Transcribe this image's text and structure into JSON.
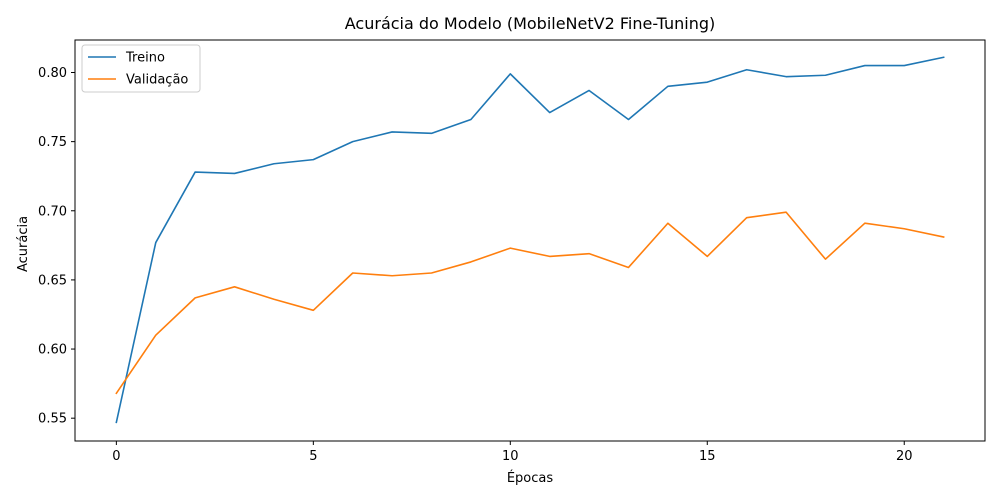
{
  "chart_data": {
    "type": "line",
    "title": "Acurácia do Modelo (MobileNetV2 Fine-Tuning)",
    "xlabel": "Épocas",
    "ylabel": "Acurácia",
    "xlim": [
      -1.05,
      22.05
    ],
    "ylim": [
      0.5335,
      0.8235
    ],
    "xticks": [
      0,
      5,
      10,
      15,
      20
    ],
    "yticks": [
      0.55,
      0.6,
      0.65,
      0.7,
      0.75,
      0.8
    ],
    "ytick_labels": [
      "0.55",
      "0.60",
      "0.65",
      "0.70",
      "0.75",
      "0.80"
    ],
    "grid": false,
    "legend_position": "top-left",
    "x": [
      0,
      1,
      2,
      3,
      4,
      5,
      6,
      7,
      8,
      9,
      10,
      11,
      12,
      13,
      14,
      15,
      16,
      17,
      18,
      19,
      20,
      21
    ],
    "series": [
      {
        "name": "Treino",
        "color": "#1f77b4",
        "values": [
          0.547,
          0.677,
          0.728,
          0.727,
          0.734,
          0.737,
          0.75,
          0.757,
          0.756,
          0.766,
          0.799,
          0.771,
          0.787,
          0.766,
          0.79,
          0.793,
          0.802,
          0.797,
          0.798,
          0.805,
          0.805,
          0.811
        ]
      },
      {
        "name": "Validação",
        "color": "#ff7f0e",
        "values": [
          0.568,
          0.61,
          0.637,
          0.645,
          0.636,
          0.628,
          0.655,
          0.653,
          0.655,
          0.663,
          0.673,
          0.667,
          0.669,
          0.659,
          0.691,
          0.667,
          0.695,
          0.699,
          0.665,
          0.691,
          0.687,
          0.681
        ]
      }
    ]
  }
}
